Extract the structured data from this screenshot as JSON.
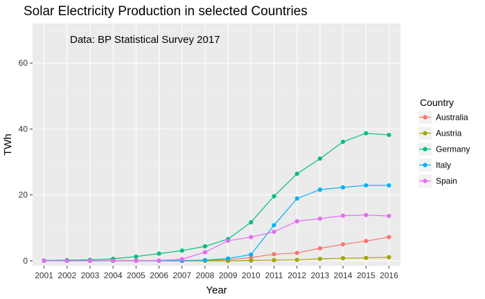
{
  "chart_data": {
    "type": "line",
    "title": "Solar Electricity Production in selected Countries",
    "annotation": "Data: BP Statistical Survey 2017",
    "xlabel": "Year",
    "ylabel": "TWh",
    "x": [
      "2001",
      "2002",
      "2003",
      "2004",
      "2005",
      "2006",
      "2007",
      "2008",
      "2009",
      "2010",
      "2011",
      "2012",
      "2013",
      "2014",
      "2015",
      "2016"
    ],
    "ylim": [
      -1.5,
      72
    ],
    "yticks": [
      0,
      20,
      40,
      60
    ],
    "grid": true,
    "legend": {
      "title": "Country",
      "position": "right"
    },
    "series": [
      {
        "name": "Australia",
        "color": "#F8766D",
        "values": [
          0.0,
          0.0,
          0.0,
          0.1,
          0.1,
          0.1,
          0.1,
          0.2,
          0.3,
          1.0,
          2.0,
          2.4,
          3.8,
          5.0,
          6.0,
          7.2
        ]
      },
      {
        "name": "Austria",
        "color": "#A3A500",
        "values": [
          0.0,
          0.0,
          0.0,
          0.0,
          0.0,
          0.0,
          0.0,
          0.0,
          0.0,
          0.1,
          0.2,
          0.3,
          0.6,
          0.8,
          0.9,
          1.1
        ]
      },
      {
        "name": "Germany",
        "color": "#00BF7D",
        "values": [
          0.1,
          0.2,
          0.3,
          0.6,
          1.3,
          2.2,
          3.1,
          4.4,
          6.6,
          11.7,
          19.6,
          26.4,
          31.0,
          36.1,
          38.7,
          38.2
        ]
      },
      {
        "name": "Italy",
        "color": "#00B0F6",
        "values": [
          0.0,
          0.0,
          0.0,
          0.0,
          0.0,
          0.0,
          0.0,
          0.2,
          0.7,
          1.9,
          10.8,
          18.9,
          21.6,
          22.3,
          22.9,
          22.9
        ]
      },
      {
        "name": "Spain",
        "color": "#E76BF3",
        "values": [
          0.0,
          0.0,
          0.0,
          0.0,
          0.0,
          0.1,
          0.5,
          2.6,
          6.1,
          7.2,
          8.8,
          12.0,
          12.8,
          13.7,
          13.9,
          13.6
        ]
      }
    ]
  }
}
